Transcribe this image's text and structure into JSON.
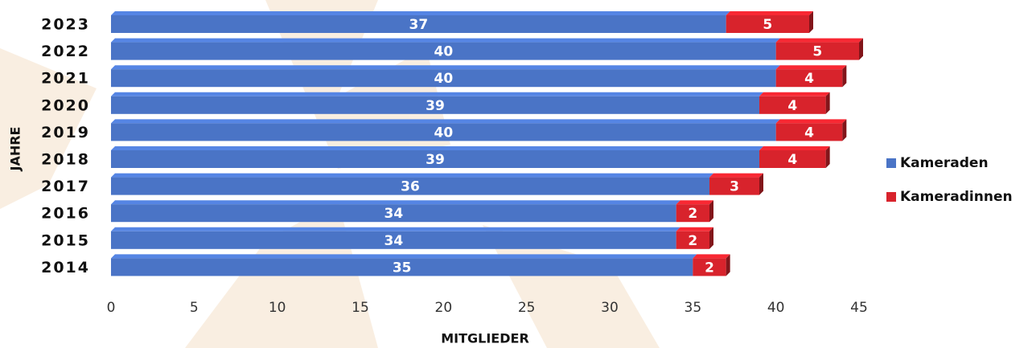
{
  "chart_data": {
    "type": "bar",
    "orientation": "horizontal",
    "stacked": true,
    "x_label": "MITGLIEDER",
    "y_label": "JAHRE",
    "categories": [
      "2023",
      "2022",
      "2021",
      "2020",
      "2019",
      "2018",
      "2017",
      "2016",
      "2015",
      "2014"
    ],
    "series": [
      {
        "name": "Kameraden",
        "color": "#4a74c6",
        "values": [
          37,
          40,
          40,
          39,
          40,
          39,
          36,
          34,
          34,
          35
        ]
      },
      {
        "name": "Kameradinnen",
        "color": "#d8232c",
        "values": [
          5,
          5,
          4,
          4,
          4,
          4,
          3,
          2,
          2,
          2
        ]
      }
    ],
    "xlim": [
      0,
      45
    ],
    "xticks": [
      0,
      5,
      10,
      15,
      20,
      25,
      30,
      35,
      40,
      45
    ],
    "legend": "right"
  }
}
